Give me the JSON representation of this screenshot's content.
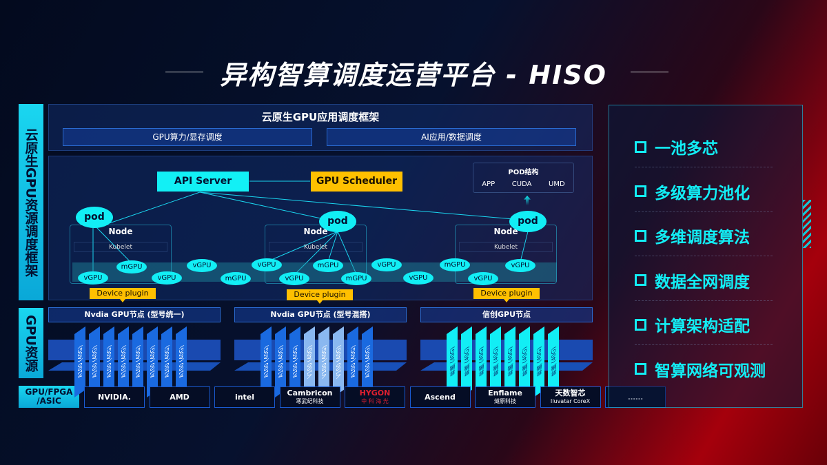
{
  "title": "异构智算调度运营平台 - HISO",
  "left_labels": {
    "framework": "云原生GPU资源调度框架",
    "gpu": "GPU资源",
    "hw": "GPU/FPGA /ASIC"
  },
  "top": {
    "title": "云原生GPU应用调度框架",
    "boxes": [
      "GPU算力/显存调度",
      "AI应用/数据调度"
    ]
  },
  "api_server": "API Server",
  "gpu_scheduler": "GPU Scheduler",
  "pod_struct": {
    "title": "POD结构",
    "items": [
      "APP",
      "CUDA",
      "UMD"
    ]
  },
  "nodes": [
    {
      "pod": "pod",
      "node": "Node",
      "kubelet": "Kubelet",
      "plugin": "Device plugin"
    },
    {
      "pod": "pod",
      "node": "Node",
      "kubelet": "Kubelet",
      "plugin": "Device plugin"
    },
    {
      "pod": "pod",
      "node": "Node",
      "kubelet": "Kubelet",
      "plugin": "Device plugin"
    }
  ],
  "gpus": [
    "vGPU",
    "mGPU",
    "vGPU",
    "vGPU",
    "mGPU",
    "vGPU",
    "vGPU",
    "mGPU",
    "mGPU",
    "vGPU",
    "vGPU",
    "mGPU",
    "vGPU",
    "vGPU"
  ],
  "groups": [
    {
      "title": "Nvdia GPU节点 (型号统一)",
      "cards": [
        "A100 (40G)",
        "A100 (40G)",
        "A100 (40G)",
        "A100 (40G)",
        "A100 (40G)",
        "A100 (40G)",
        "A100 (40G)",
        "A100 (40G)"
      ]
    },
    {
      "title": "Nvdia GPU节点 (型号混搭)",
      "cards": [
        "A100 (40G)",
        "A100 (40G)",
        "A100 (40G)",
        "V100 (40G)",
        "V100 (40G)",
        "V100 (40G)",
        "A100 (40G)",
        "A100 (40G)"
      ]
    },
    {
      "title": "信创GPU节点",
      "cards": [
        "昇腾 (40G)",
        "昇腾 (40G)",
        "昇腾 (40G)",
        "昇腾 (40G)",
        "昇腾 (40G)",
        "昇腾 (40G)",
        "昇腾 (40G)",
        "昇腾 (40G)"
      ]
    }
  ],
  "vendors": [
    {
      "name": "NVIDIA.",
      "sub": ""
    },
    {
      "name": "AMD",
      "sub": ""
    },
    {
      "name": "intel",
      "sub": ""
    },
    {
      "name": "Cambricon",
      "sub": "寒武纪科技"
    },
    {
      "name": "HYGON",
      "sub": "中 科 海 光"
    },
    {
      "name": "Ascend",
      "sub": ""
    },
    {
      "name": "Enflame",
      "sub": "燧原科技"
    },
    {
      "name": "天数智芯",
      "sub": "Iluvatar CoreX"
    },
    {
      "name": "……",
      "sub": ""
    }
  ],
  "features": [
    "一池多芯",
    "多级算力池化",
    "多维调度算法",
    "数据全网调度",
    "计算架构适配",
    "智算网络可观测"
  ],
  "colors": {
    "cyan": "#12eef5",
    "yellow": "#ffc000",
    "blue": "#1a6ae0",
    "v100": "#8ab8f0"
  }
}
